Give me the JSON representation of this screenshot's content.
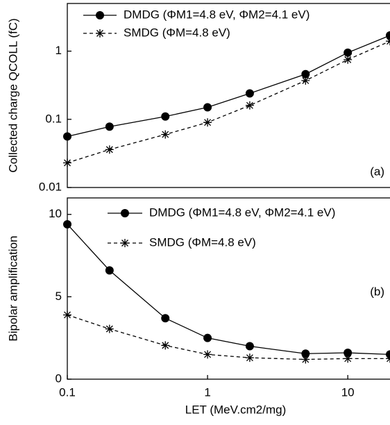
{
  "chart_data": [
    {
      "type": "line",
      "ylabel": "Collected charge QCOLL (fC)",
      "annotation": "(a)",
      "x": [
        0.1,
        0.2,
        0.5,
        1,
        2,
        5,
        10,
        20
      ],
      "xlim": [
        0.1,
        20
      ],
      "log_x": true,
      "ylim": [
        0.01,
        5
      ],
      "yticks": [
        0.01,
        0.1,
        1
      ],
      "log_y": true,
      "legend": "upper left",
      "series": [
        {
          "name": "DMDG  (ΦM1=4.8 eV, ΦM2=4.1 eV)",
          "color": "#000000",
          "marker": "circle",
          "dash": "solid",
          "values": [
            0.056,
            0.078,
            0.11,
            0.15,
            0.24,
            0.46,
            0.95,
            1.7
          ]
        },
        {
          "name": "SMDG  (ΦM=4.8 eV)",
          "color": "#000000",
          "marker": "asterisk",
          "dash": "dashed",
          "values": [
            0.023,
            0.036,
            0.06,
            0.09,
            0.16,
            0.37,
            0.75,
            1.4
          ]
        }
      ]
    },
    {
      "type": "line",
      "ylabel": "Bipolar amplification",
      "xlabel": "LET (MeV.cm2/mg)",
      "annotation": "(b)",
      "x": [
        0.1,
        0.2,
        0.5,
        1,
        2,
        5,
        10,
        20
      ],
      "xlim": [
        0.1,
        20
      ],
      "xticks": [
        0.1,
        1,
        10
      ],
      "log_x": true,
      "ylim": [
        0,
        11
      ],
      "yticks": [
        0,
        5,
        10
      ],
      "log_y": false,
      "legend": "upper right",
      "series": [
        {
          "name": "DMDG  (ΦM1=4.8 eV, ΦM2=4.1 eV)",
          "color": "#000000",
          "marker": "circle",
          "dash": "solid",
          "values": [
            9.4,
            6.6,
            3.7,
            2.5,
            2.0,
            1.55,
            1.6,
            1.5
          ]
        },
        {
          "name": "SMDG  (ΦM=4.8 eV)",
          "color": "#000000",
          "marker": "asterisk",
          "dash": "dashed",
          "values": [
            3.9,
            3.05,
            2.05,
            1.5,
            1.3,
            1.2,
            1.25,
            1.25
          ]
        }
      ]
    }
  ]
}
